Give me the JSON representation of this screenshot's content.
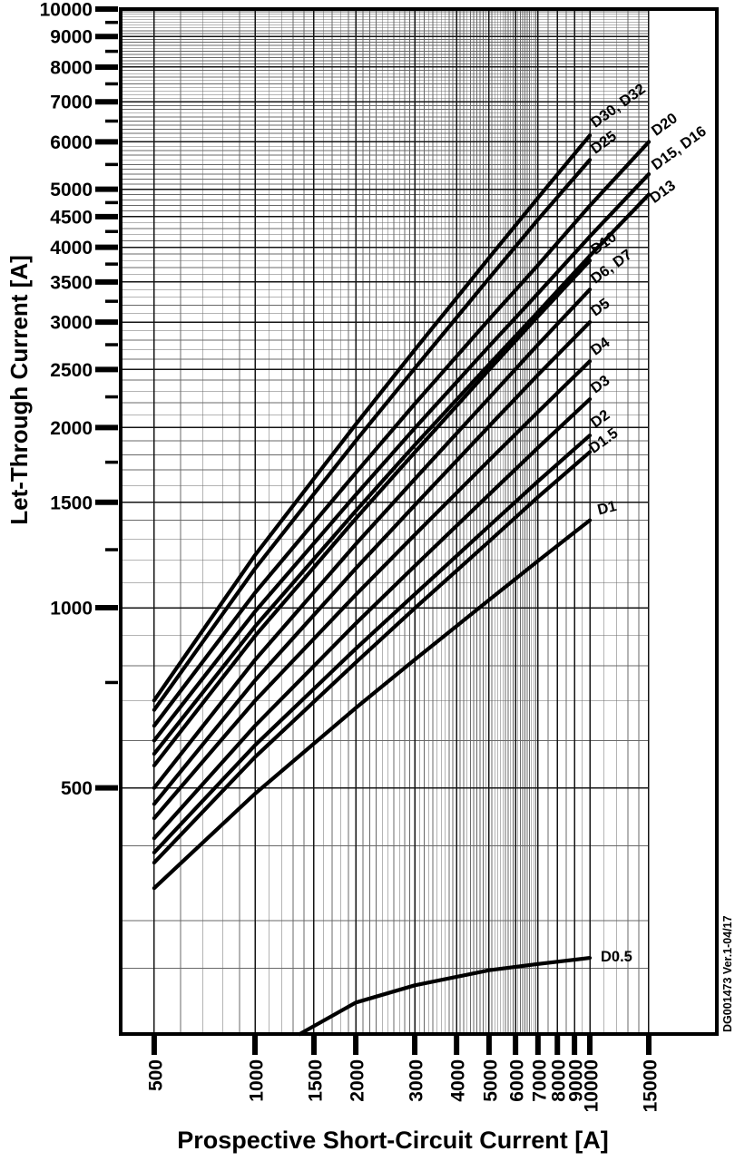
{
  "footer": {
    "doc_ref": "DG001473  Ver.1-04/17"
  },
  "chart_data": {
    "type": "line",
    "title": "",
    "xlabel": "Prospective Short-Circuit Current [A]",
    "ylabel": "Let-Through Current [A]",
    "x_scale": "log",
    "y_scale": "log",
    "xlim": [
      397,
      23900
    ],
    "ylim": [
      194,
      10000
    ],
    "grid": "on",
    "grid_x_range": [
      500,
      15000
    ],
    "legend_position": "labels-at-line-ends",
    "x_major_ticks": [
      500,
      1000,
      1500,
      2000,
      3000,
      4000,
      5000,
      6000,
      7000,
      8000,
      9000,
      10000,
      15000
    ],
    "y_major_ticks": [
      10000,
      9000,
      8000,
      7000,
      6000,
      5000,
      4500,
      4000,
      3500,
      3000,
      2500,
      2000,
      1500,
      1000,
      500
    ],
    "y_minor_axis_ticks": [
      9500,
      8500,
      7500,
      6500,
      5500,
      4750,
      4250,
      3750,
      3250,
      2750,
      2250,
      1750,
      1250,
      750
    ],
    "x_minor_grid": [
      {
        "from": 500,
        "to": 7000,
        "step": 100
      },
      {
        "from": 7000,
        "to": 10000,
        "step": 500
      },
      {
        "from": 10000,
        "to": 15000,
        "step": 1000
      }
    ],
    "y_minor_grid": [
      {
        "from": 300,
        "to": 10000,
        "step": 100
      }
    ],
    "y_minor_grid_extra": [
      250
    ],
    "series": [
      {
        "name": "D30, D32",
        "label": {
          "rot": -36,
          "dx": 6,
          "dy": -8
        },
        "points": [
          [
            500,
            700
          ],
          [
            1000,
            1224
          ],
          [
            2000,
            2025
          ],
          [
            3000,
            2696
          ],
          [
            5000,
            3841
          ],
          [
            7000,
            4836
          ],
          [
            10000,
            6150
          ]
        ]
      },
      {
        "name": "D25",
        "label": {
          "rot": -36,
          "dx": 6,
          "dy": -6
        },
        "points": [
          [
            500,
            675
          ],
          [
            1000,
            1162
          ],
          [
            2000,
            1900
          ],
          [
            3000,
            2511
          ],
          [
            5000,
            3551
          ],
          [
            7000,
            4448
          ],
          [
            10000,
            5600
          ]
        ]
      },
      {
        "name": "D20",
        "label": {
          "rot": -36,
          "dx": 8,
          "dy": -6
        },
        "points": [
          [
            500,
            635
          ],
          [
            1000,
            1059
          ],
          [
            2000,
            1680
          ],
          [
            3000,
            2191
          ],
          [
            5000,
            3029
          ],
          [
            7000,
            3734
          ],
          [
            10000,
            4693
          ],
          [
            15000,
            6000
          ]
        ]
      },
      {
        "name": "D15, D16",
        "label": {
          "rot": -36,
          "dx": 8,
          "dy": -4
        },
        "points": [
          [
            500,
            600
          ],
          [
            1000,
            985
          ],
          [
            2000,
            1544
          ],
          [
            3000,
            1995
          ],
          [
            5000,
            2732
          ],
          [
            7000,
            3348
          ],
          [
            10000,
            4170
          ],
          [
            15000,
            5300
          ]
        ]
      },
      {
        "name": "D13",
        "label": {
          "rot": -36,
          "dx": 6,
          "dy": 10
        },
        "points": [
          [
            500,
            570
          ],
          [
            1000,
            930
          ],
          [
            2000,
            1451
          ],
          [
            3000,
            1870
          ],
          [
            5000,
            2548
          ],
          [
            7000,
            3118
          ],
          [
            10000,
            3870
          ],
          [
            15000,
            4900
          ]
        ]
      },
      {
        "name": "D10",
        "label": {
          "rot": -36,
          "dx": 6,
          "dy": -6
        },
        "points": [
          [
            500,
            545
          ],
          [
            1000,
            897
          ],
          [
            2000,
            1409
          ],
          [
            3000,
            1818
          ],
          [
            5000,
            2497
          ],
          [
            7000,
            3067
          ],
          [
            10000,
            3800
          ]
        ]
      },
      {
        "name": "D6, D7",
        "label": {
          "rot": -36,
          "dx": 6,
          "dy": -6
        },
        "points": [
          [
            500,
            500
          ],
          [
            1000,
            818
          ],
          [
            2000,
            1277
          ],
          [
            3000,
            1640
          ],
          [
            5000,
            2240
          ],
          [
            7000,
            2750
          ],
          [
            10000,
            3400
          ]
        ]
      },
      {
        "name": "D5",
        "label": {
          "rot": -36,
          "dx": 6,
          "dy": -6
        },
        "points": [
          [
            500,
            470
          ],
          [
            1000,
            756
          ],
          [
            2000,
            1163
          ],
          [
            3000,
            1484
          ],
          [
            5000,
            2009
          ],
          [
            7000,
            2449
          ],
          [
            10000,
            3000
          ]
        ]
      },
      {
        "name": "D4",
        "label": {
          "rot": -36,
          "dx": 6,
          "dy": -6
        },
        "points": [
          [
            500,
            445
          ],
          [
            1000,
            699
          ],
          [
            2000,
            1051
          ],
          [
            3000,
            1324
          ],
          [
            5000,
            1762
          ],
          [
            7000,
            2123
          ],
          [
            10000,
            2580
          ]
        ]
      },
      {
        "name": "D3",
        "label": {
          "rot": -36,
          "dx": 6,
          "dy": -6
        },
        "points": [
          [
            500,
            412
          ],
          [
            1000,
            635
          ],
          [
            2000,
            941
          ],
          [
            3000,
            1174
          ],
          [
            5000,
            1545
          ],
          [
            7000,
            1850
          ],
          [
            10000,
            2230
          ]
        ]
      },
      {
        "name": "D2",
        "label": {
          "rot": -36,
          "dx": 6,
          "dy": -8
        },
        "points": [
          [
            500,
            390
          ],
          [
            1000,
            589
          ],
          [
            2000,
            854
          ],
          [
            3000,
            1053
          ],
          [
            5000,
            1369
          ],
          [
            7000,
            1626
          ],
          [
            10000,
            1940
          ]
        ]
      },
      {
        "name": "D1.5",
        "label": {
          "rot": -36,
          "dx": 4,
          "dy": 2
        },
        "points": [
          [
            500,
            375
          ],
          [
            1000,
            563
          ],
          [
            2000,
            810
          ],
          [
            3000,
            998
          ],
          [
            5000,
            1290
          ],
          [
            7000,
            1530
          ],
          [
            10000,
            1820
          ]
        ]
      },
      {
        "name": "D1",
        "label": {
          "rot": -14,
          "dx": 10,
          "dy": -6
        },
        "points": [
          [
            500,
            340
          ],
          [
            1000,
            489
          ],
          [
            2000,
            680
          ],
          [
            3000,
            819
          ],
          [
            5000,
            1030
          ],
          [
            7000,
            1197
          ],
          [
            10000,
            1400
          ]
        ]
      },
      {
        "name": "D0.5",
        "label": {
          "rot": 0,
          "dx": 12,
          "dy": 4
        },
        "points": [
          [
            1360,
            194
          ],
          [
            2000,
            219
          ],
          [
            3000,
            234
          ],
          [
            5000,
            248
          ],
          [
            7000,
            254
          ],
          [
            10000,
            260
          ]
        ]
      }
    ]
  }
}
